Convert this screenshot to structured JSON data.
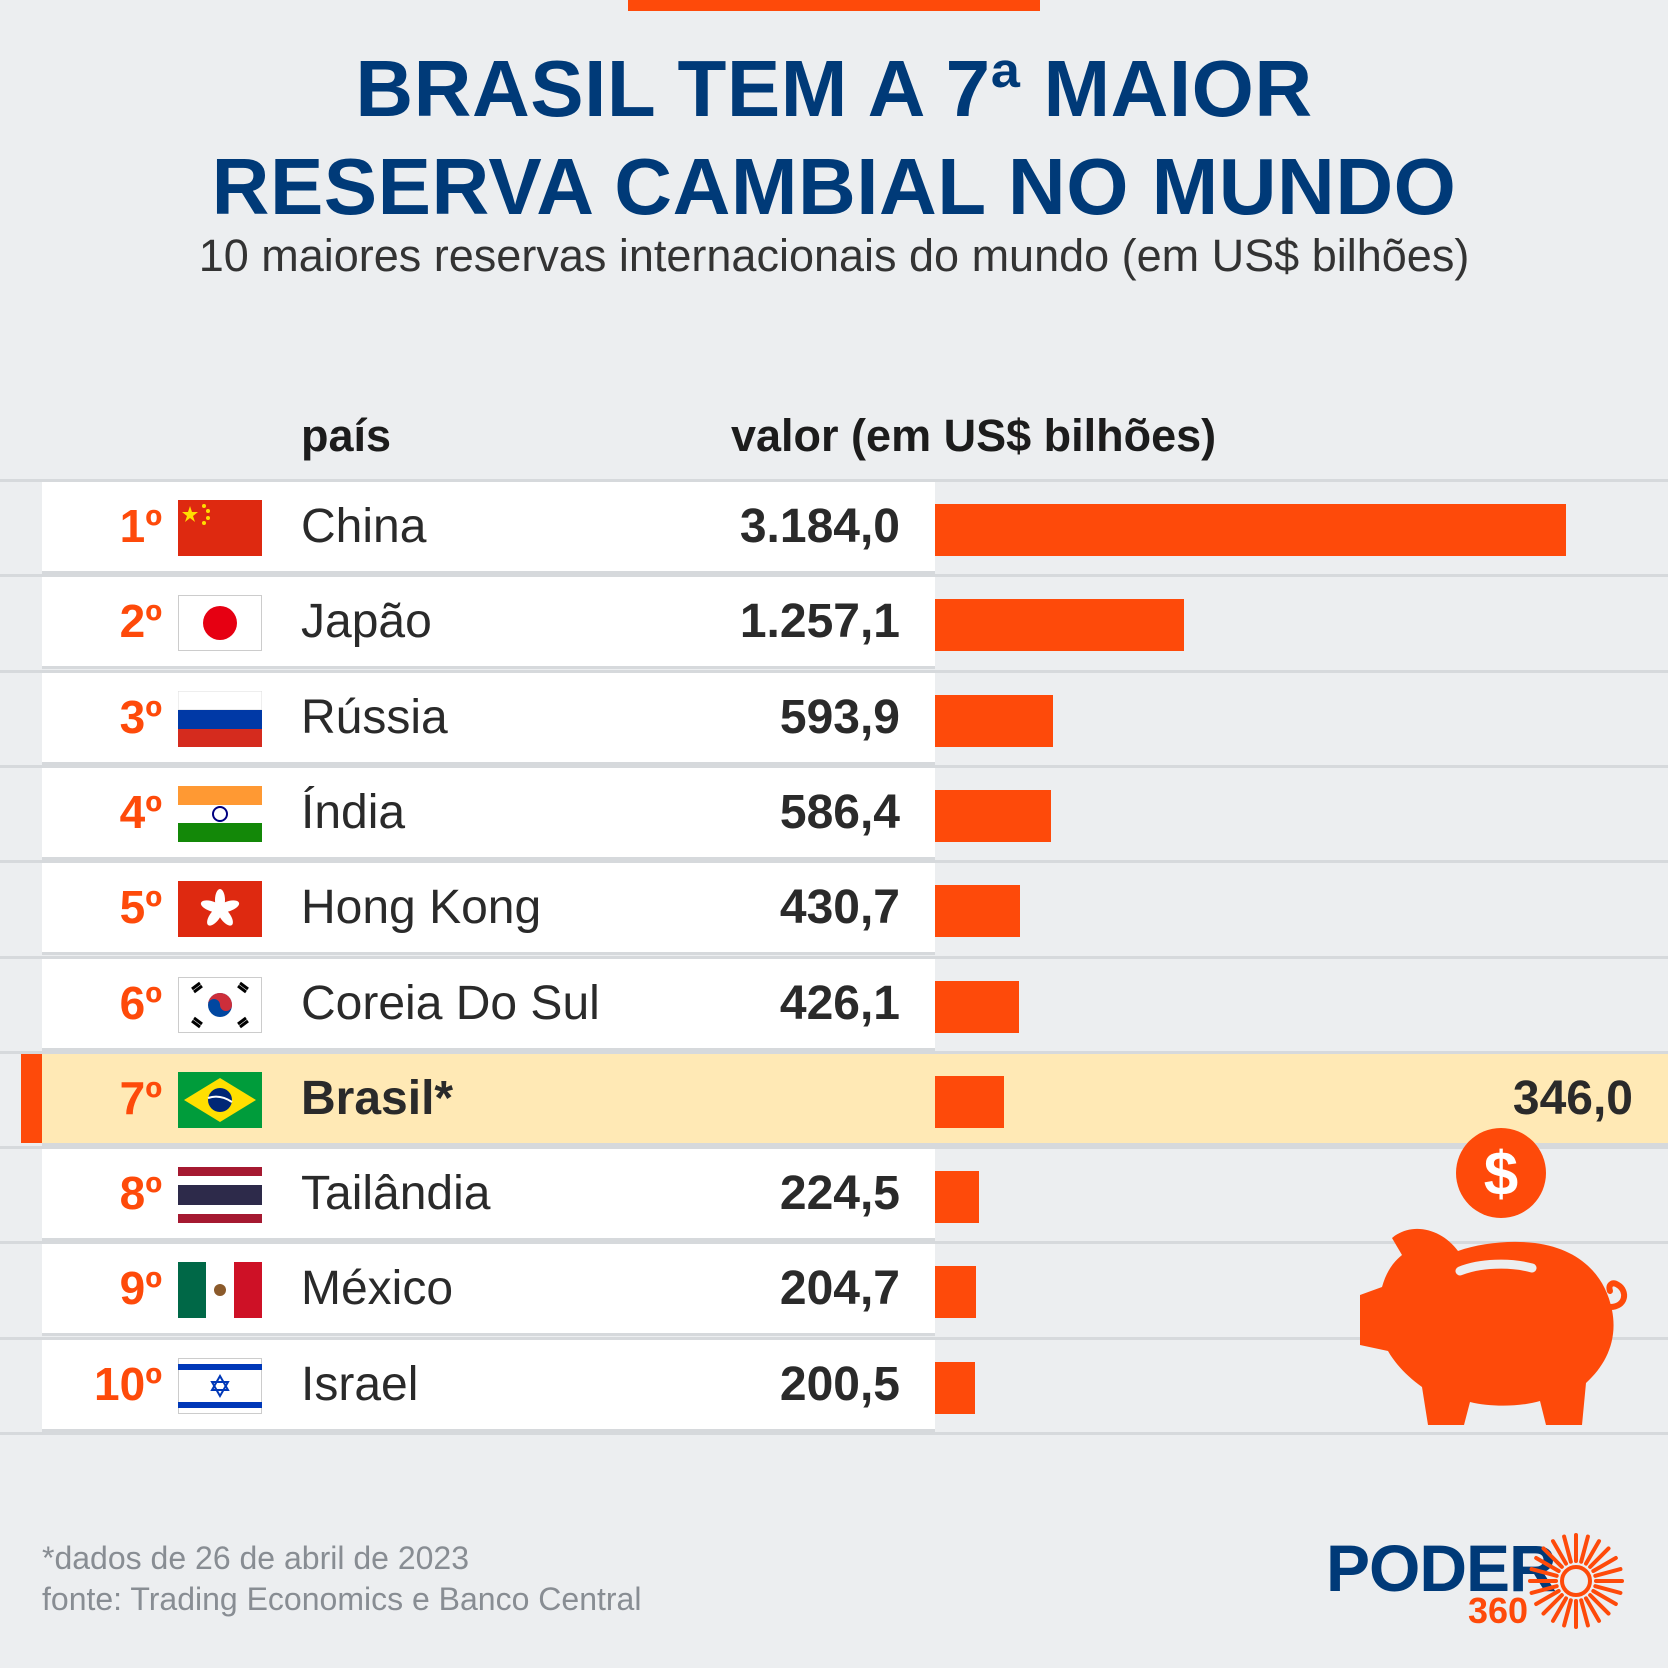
{
  "header": {
    "title_line1": "BRASIL TEM A 7ª MAIOR",
    "title_line2": "RESERVA CAMBIAL NO MUNDO",
    "subtitle": "10 maiores reservas internacionais do mundo (em US$ bilhões)"
  },
  "columns": {
    "country": "país",
    "value": "valor (em US$ bilhões)"
  },
  "accent_color": "#fe4a0a",
  "title_color": "#003a78",
  "highlight_color": "#ffe9b5",
  "chart_data": {
    "type": "bar",
    "orientation": "horizontal",
    "title": "BRASIL TEM A 7ª MAIOR RESERVA CAMBIAL NO MUNDO",
    "subtitle": "10 maiores reservas internacionais do mundo (em US$ bilhões)",
    "ranks": [
      "1º",
      "2º",
      "3º",
      "4º",
      "5º",
      "6º",
      "7º",
      "8º",
      "9º",
      "10º"
    ],
    "categories": [
      "China",
      "Japão",
      "Rússia",
      "Índia",
      "Hong Kong",
      "Coreia Do Sul",
      "Brasil*",
      "Tailândia",
      "México",
      "Israel"
    ],
    "values": [
      3184.0,
      1257.1,
      593.9,
      586.4,
      430.7,
      426.1,
      346.0,
      224.5,
      204.7,
      200.5
    ],
    "value_labels": [
      "3.184,0",
      "1.257,1",
      "593,9",
      "586,4",
      "430,7",
      "426,1",
      "346,0",
      "224,5",
      "204,7",
      "200,5"
    ],
    "flags": [
      "china-flag-icon",
      "japan-flag-icon",
      "russia-flag-icon",
      "india-flag-icon",
      "hong-kong-flag-icon",
      "south-korea-flag-icon",
      "brazil-flag-icon",
      "thailand-flag-icon",
      "mexico-flag-icon",
      "israel-flag-icon"
    ],
    "highlight_index": 6,
    "xlim": [
      0,
      3184.0
    ]
  },
  "footer": {
    "note": "*dados de 26 de abril de 2023",
    "source": "fonte: Trading Economics e Banco Central"
  },
  "logo": {
    "word": "PODER",
    "number": "360"
  },
  "illustration": {
    "coin_symbol": "$",
    "icon": "piggy-bank-icon"
  }
}
